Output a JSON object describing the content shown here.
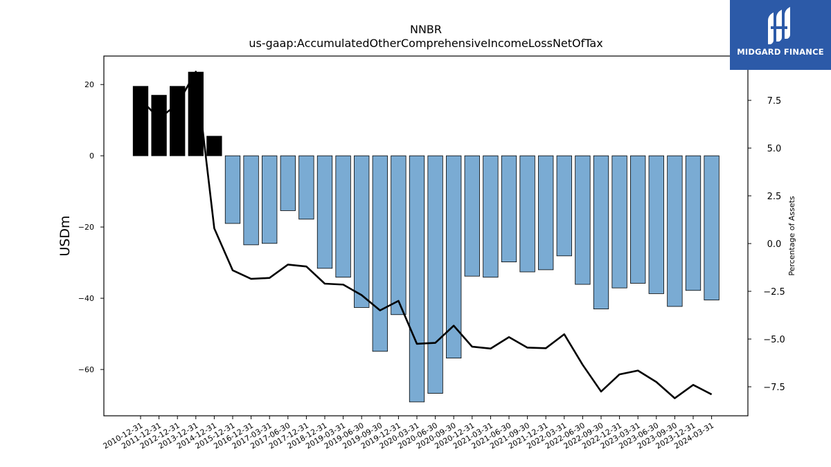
{
  "logo": {
    "text": "MIDGARD FINANCE",
    "color": "#2c5aa8"
  },
  "colors": {
    "positive_bar": "#000000",
    "negative_bar": "#7aabd3",
    "line": "#000000"
  },
  "chart_data": {
    "type": "bar",
    "title": "NNBR",
    "subtitle": "us-gaap:AccumulatedOtherComprehensiveIncomeLossNetOfTax",
    "ylabel": "USDm",
    "y2label": "Percentage of Assets",
    "ylim": [
      -73,
      28
    ],
    "y2lim": [
      -9.02,
      9.82
    ],
    "yticks": [
      20,
      0,
      -20,
      -40,
      -60
    ],
    "y2ticks": [
      7.5,
      5.0,
      2.5,
      0.0,
      -2.5,
      -5.0,
      -7.5
    ],
    "y2tick_labels": [
      "7.5",
      "5.0",
      "2.5",
      "0.0",
      "−2.5",
      "−5.0",
      "−7.5"
    ],
    "categories": [
      "2010-12-31",
      "2011-12-31",
      "2012-12-31",
      "2013-12-31",
      "2014-12-31",
      "2015-12-31",
      "2016-12-31",
      "2017-03-31",
      "2017-06-30",
      "2017-12-31",
      "2018-12-31",
      "2019-03-31",
      "2019-06-30",
      "2019-09-30",
      "2019-12-31",
      "2020-03-31",
      "2020-06-30",
      "2020-09-30",
      "2020-12-31",
      "2021-03-31",
      "2021-06-30",
      "2021-09-30",
      "2021-12-31",
      "2022-03-31",
      "2022-06-30",
      "2022-09-30",
      "2022-12-31",
      "2023-03-31",
      "2023-06-30",
      "2023-09-30",
      "2023-12-31",
      "2024-03-31"
    ],
    "series": [
      {
        "values": [
          19.5,
          17.0,
          19.5,
          23.5,
          5.5,
          -19.0,
          -25.0,
          -24.6,
          -15.4,
          -17.8,
          -31.6,
          -34.1,
          -42.6,
          -54.9,
          -44.6,
          -69.1,
          -66.7,
          -56.8,
          -33.8,
          -34.1,
          -29.8,
          -32.6,
          -32.0,
          -28.1,
          -36.1,
          -43.0,
          -37.1,
          -35.8,
          -38.7,
          -42.3,
          -37.8,
          -40.5
        ]
      },
      {
        "type": "line",
        "values": [
          7.55,
          6.55,
          7.3,
          9.0,
          0.8,
          -1.4,
          -1.85,
          -1.8,
          -1.1,
          -1.2,
          -2.1,
          -2.15,
          -2.7,
          -3.5,
          -3.0,
          -5.25,
          -5.2,
          -4.3,
          -5.4,
          -5.5,
          -4.9,
          -5.45,
          -5.48,
          -4.75,
          -6.35,
          -7.75,
          -6.85,
          -6.65,
          -7.25,
          -8.1,
          -7.4,
          -7.9
        ]
      }
    ]
  }
}
